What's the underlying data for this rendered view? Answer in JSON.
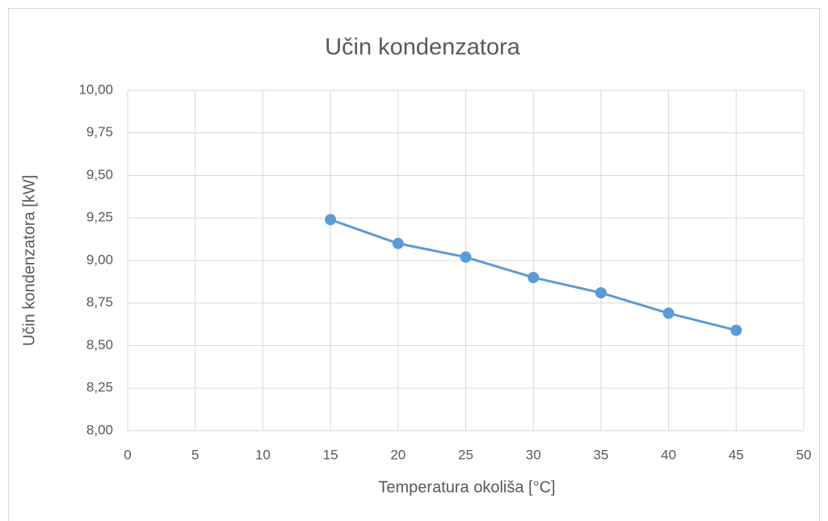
{
  "chart_data": {
    "type": "line",
    "title": "Učin kondenzatora",
    "x_label": "Temperatura okoliša [°C]",
    "y_label": "Učin kondenzatora [kW]",
    "x": [
      15,
      20,
      25,
      30,
      35,
      40,
      45
    ],
    "series": [
      {
        "name": "Učin kondenzatora",
        "color": "#5b9bd5",
        "values": [
          9.24,
          9.1,
          9.02,
          8.9,
          8.81,
          8.69,
          8.59
        ]
      }
    ],
    "xlim": [
      0,
      50
    ],
    "xticks": [
      0,
      5,
      10,
      15,
      20,
      25,
      30,
      35,
      40,
      45,
      50
    ],
    "ylim": [
      8,
      10
    ],
    "yticks": [
      {
        "value": 8,
        "label": "8,00"
      },
      {
        "value": 8.25,
        "label": "8,25"
      },
      {
        "value": 8.5,
        "label": "8,50"
      },
      {
        "value": 8.75,
        "label": "8,75"
      },
      {
        "value": 9,
        "label": "9,00"
      },
      {
        "value": 9.25,
        "label": "9,25"
      },
      {
        "value": 9.5,
        "label": "9,50"
      },
      {
        "value": 9.75,
        "label": "9,75"
      },
      {
        "value": 10,
        "label": "10,00"
      }
    ],
    "grid": true
  }
}
